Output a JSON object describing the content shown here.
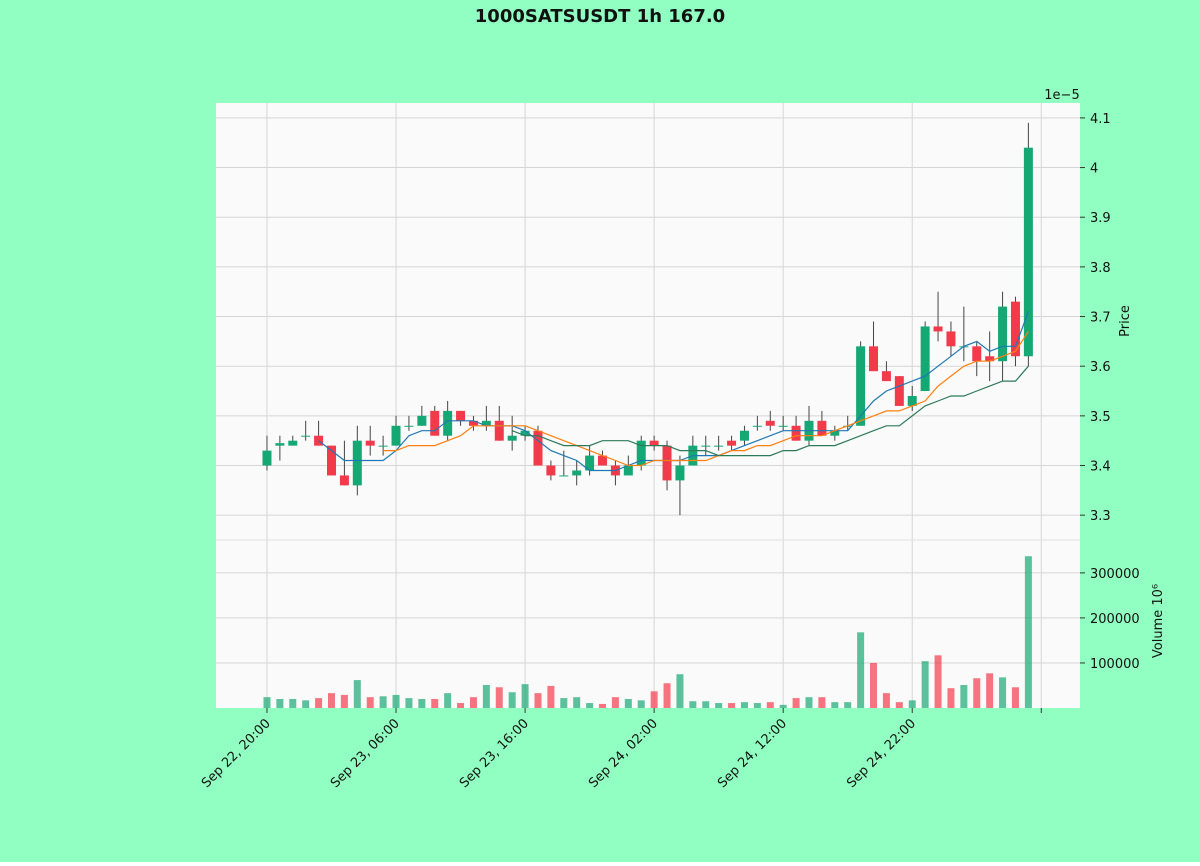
{
  "chart_data": {
    "type": "candlestick",
    "title": "1000SATSUSDT 1h 167.0",
    "ylabel": "Price",
    "y_offset_label": "1e−5",
    "volume_label": "Volume  10⁶",
    "background": "#91ffc1",
    "panel_color": "#fafafa",
    "up_color": "#16a874",
    "down_color": "#f23b4a",
    "grid": true,
    "categories": [
      "Sep 22, 20:00",
      null,
      null,
      null,
      null,
      null,
      null,
      null,
      null,
      null,
      "Sep 23, 06:00",
      null,
      null,
      null,
      null,
      null,
      null,
      null,
      null,
      null,
      "Sep 23, 16:00",
      null,
      null,
      null,
      null,
      null,
      null,
      null,
      null,
      null,
      "Sep 24, 02:00",
      null,
      null,
      null,
      null,
      null,
      null,
      null,
      null,
      null,
      "Sep 24, 12:00",
      null,
      null,
      null,
      null,
      null,
      null,
      null,
      null,
      null,
      "Sep 24, 22:00",
      null,
      null,
      null,
      null,
      null,
      null,
      null,
      null,
      null
    ],
    "xlim": [
      -3.95,
      63
    ],
    "xticks": [
      0,
      10,
      20,
      30,
      40,
      50,
      60
    ],
    "open": [
      3.4,
      3.44,
      3.44,
      3.46,
      3.46,
      3.44,
      3.38,
      3.36,
      3.45,
      3.44,
      3.44,
      3.48,
      3.48,
      3.51,
      3.46,
      3.51,
      3.49,
      3.48,
      3.49,
      3.45,
      3.46,
      3.47,
      3.4,
      3.38,
      3.38,
      3.39,
      3.42,
      3.4,
      3.38,
      3.4,
      3.45,
      3.44,
      3.37,
      3.4,
      3.44,
      3.44,
      3.45,
      3.45,
      3.48,
      3.49,
      3.48,
      3.48,
      3.45,
      3.49,
      3.46,
      3.48,
      3.48,
      3.64,
      3.59,
      3.58,
      3.52,
      3.55,
      3.68,
      3.67,
      3.64,
      3.64,
      3.62,
      3.61,
      3.73,
      3.62
    ],
    "high": [
      3.46,
      3.46,
      3.46,
      3.49,
      3.49,
      3.44,
      3.45,
      3.48,
      3.48,
      3.46,
      3.5,
      3.5,
      3.52,
      3.52,
      3.53,
      3.51,
      3.5,
      3.52,
      3.52,
      3.5,
      3.48,
      3.48,
      3.41,
      3.43,
      3.41,
      3.44,
      3.43,
      3.41,
      3.42,
      3.46,
      3.46,
      3.45,
      3.42,
      3.46,
      3.46,
      3.46,
      3.46,
      3.48,
      3.5,
      3.51,
      3.5,
      3.5,
      3.52,
      3.51,
      3.48,
      3.5,
      3.65,
      3.69,
      3.61,
      3.58,
      3.56,
      3.69,
      3.75,
      3.69,
      3.72,
      3.65,
      3.67,
      3.75,
      3.74,
      4.09
    ],
    "low": [
      3.39,
      3.41,
      3.44,
      3.45,
      3.44,
      3.38,
      3.36,
      3.34,
      3.42,
      3.42,
      3.44,
      3.47,
      3.48,
      3.46,
      3.45,
      3.48,
      3.47,
      3.47,
      3.45,
      3.43,
      3.45,
      3.4,
      3.37,
      3.38,
      3.36,
      3.38,
      3.4,
      3.36,
      3.38,
      3.39,
      3.43,
      3.35,
      3.3,
      3.4,
      3.42,
      3.43,
      3.43,
      3.44,
      3.47,
      3.47,
      3.47,
      3.45,
      3.44,
      3.46,
      3.45,
      3.47,
      3.48,
      3.59,
      3.57,
      3.52,
      3.51,
      3.55,
      3.65,
      3.62,
      3.61,
      3.58,
      3.57,
      3.57,
      3.6,
      3.6
    ],
    "close": [
      3.43,
      3.445,
      3.45,
      3.46,
      3.44,
      3.38,
      3.36,
      3.45,
      3.44,
      3.44,
      3.48,
      3.48,
      3.5,
      3.46,
      3.51,
      3.49,
      3.48,
      3.49,
      3.45,
      3.46,
      3.47,
      3.4,
      3.38,
      3.38,
      3.39,
      3.42,
      3.4,
      3.38,
      3.4,
      3.45,
      3.44,
      3.37,
      3.4,
      3.44,
      3.44,
      3.44,
      3.44,
      3.47,
      3.48,
      3.48,
      3.48,
      3.45,
      3.49,
      3.46,
      3.47,
      3.48,
      3.64,
      3.59,
      3.57,
      3.52,
      3.54,
      3.68,
      3.67,
      3.64,
      3.64,
      3.61,
      3.61,
      3.72,
      3.62,
      4.04
    ],
    "volume": [
      24000,
      20000,
      20000,
      17000,
      22000,
      33000,
      29000,
      62000,
      24000,
      26000,
      29000,
      22000,
      20000,
      20000,
      33000,
      11000,
      24000,
      51000,
      46000,
      35000,
      53000,
      33000,
      49000,
      22000,
      24000,
      11000,
      9000,
      24000,
      20000,
      17000,
      37000,
      55000,
      75000,
      15000,
      15000,
      11000,
      11000,
      13000,
      11000,
      13000,
      7000,
      22000,
      24000,
      24000,
      13000,
      13000,
      168000,
      100000,
      33000,
      13000,
      17000,
      104000,
      117000,
      44000,
      51000,
      66000,
      77000,
      68000,
      46000,
      337000
    ],
    "ylim": [
      3.25,
      4.13
    ],
    "yticks": [
      3.3,
      3.4,
      3.5,
      3.6,
      3.7,
      3.8,
      3.9,
      4.0,
      4.1
    ],
    "volume_ylim": [
      0,
      373000
    ],
    "volume_yticks": [
      100000,
      200000,
      300000
    ],
    "mav": [
      {
        "color": "#1f77b4",
        "values": [
          null,
          null,
          null,
          null,
          3.45,
          3.43,
          3.41,
          3.41,
          3.41,
          3.41,
          3.43,
          3.46,
          3.47,
          3.47,
          3.49,
          3.49,
          3.49,
          3.48,
          3.48,
          3.48,
          3.47,
          3.45,
          3.43,
          3.42,
          3.41,
          3.39,
          3.39,
          3.39,
          3.4,
          3.41,
          3.41,
          3.41,
          3.41,
          3.42,
          3.42,
          3.42,
          3.43,
          3.44,
          3.45,
          3.46,
          3.47,
          3.47,
          3.47,
          3.47,
          3.47,
          3.47,
          3.5,
          3.53,
          3.55,
          3.56,
          3.57,
          3.58,
          3.6,
          3.62,
          3.64,
          3.65,
          3.63,
          3.64,
          3.64,
          3.71
        ]
      },
      {
        "color": "#ff7f0e",
        "values": [
          null,
          null,
          null,
          null,
          null,
          null,
          null,
          null,
          null,
          3.43,
          3.43,
          3.44,
          3.44,
          3.44,
          3.45,
          3.46,
          3.48,
          3.48,
          3.48,
          3.48,
          3.48,
          3.47,
          3.46,
          3.45,
          3.44,
          3.43,
          3.42,
          3.41,
          3.4,
          3.4,
          3.41,
          3.41,
          3.41,
          3.41,
          3.41,
          3.42,
          3.43,
          3.43,
          3.44,
          3.44,
          3.45,
          3.46,
          3.46,
          3.46,
          3.47,
          3.48,
          3.49,
          3.5,
          3.51,
          3.51,
          3.52,
          3.53,
          3.56,
          3.58,
          3.6,
          3.61,
          3.61,
          3.62,
          3.63,
          3.67
        ]
      },
      {
        "color": "#2c7a5a",
        "values": [
          null,
          null,
          null,
          null,
          null,
          null,
          null,
          null,
          null,
          null,
          null,
          null,
          null,
          null,
          null,
          null,
          null,
          null,
          null,
          3.47,
          3.46,
          3.46,
          3.45,
          3.44,
          3.44,
          3.44,
          3.45,
          3.45,
          3.45,
          3.44,
          3.44,
          3.44,
          3.43,
          3.43,
          3.43,
          3.42,
          3.42,
          3.42,
          3.42,
          3.42,
          3.43,
          3.43,
          3.44,
          3.44,
          3.44,
          3.45,
          3.46,
          3.47,
          3.48,
          3.48,
          3.5,
          3.52,
          3.53,
          3.54,
          3.54,
          3.55,
          3.56,
          3.57,
          3.57,
          3.6
        ]
      }
    ]
  }
}
